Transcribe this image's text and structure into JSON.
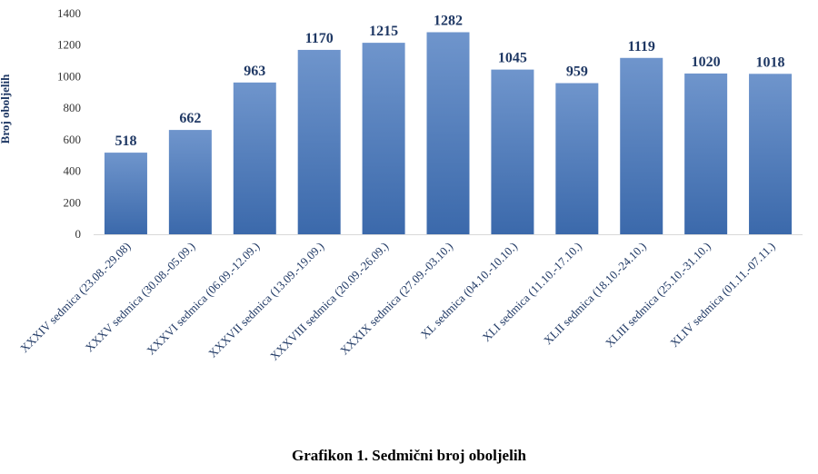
{
  "caption": "Grafikon 1. Sedmični broj oboljelih",
  "chart_data": {
    "type": "bar",
    "title": "",
    "xlabel": "",
    "ylabel": "Broj oboljelih",
    "ylim": [
      0,
      1400
    ],
    "yticks": [
      0,
      200,
      400,
      600,
      800,
      1000,
      1200,
      1400
    ],
    "categories": [
      "XXXIV sedmica (23.08.-29.08)",
      "XXXV sedmica (30.08.-05.09.)",
      "XXXVI sedmica (06.09.-12.09.)",
      "XXXVII sedmica (13.09.-19.09.)",
      "XXXVIII sedmica (20.09.-26.09.)",
      "XXXIX sedmica (27.09.-03.10.)",
      "XL sedmica (04.10.-10.10.)",
      "XLI sedmica (11.10.-17.10.)",
      "XLII sedmica (18.10.-24.10.)",
      "XLIII sedmica (25.10.-31.10.)",
      "XLIV sedmica (01.11.-07.11.)"
    ],
    "values": [
      518,
      662,
      963,
      1170,
      1215,
      1282,
      1045,
      959,
      1119,
      1020,
      1018
    ],
    "grid": false,
    "legend": "none",
    "bar_color": "#4a78b8"
  }
}
